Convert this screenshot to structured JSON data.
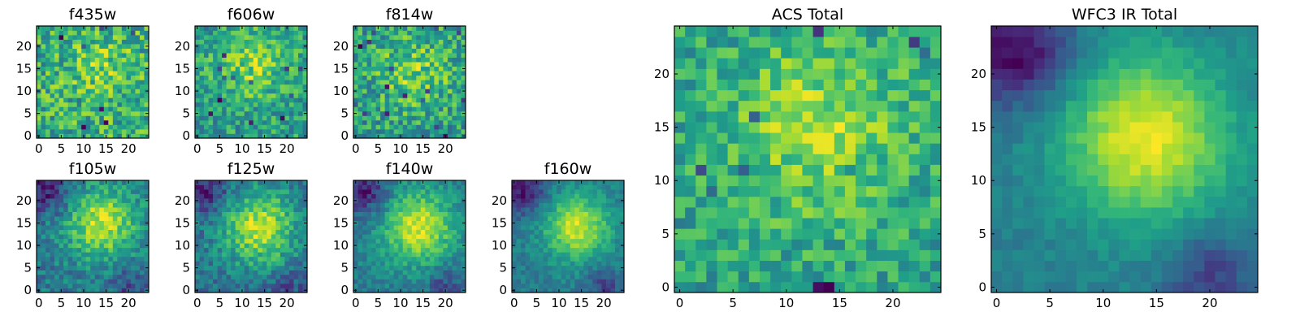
{
  "figure": {
    "description_free": true
  },
  "chart_data": [
    {
      "type": "heatmap",
      "title": "f435w",
      "grid_size": 25,
      "peak": [
        14,
        15
      ],
      "sigma": 5.0,
      "noise": 0.55,
      "signal": 0.35,
      "seed": 11,
      "corner_dark": 0.0,
      "xlim": [
        0,
        24
      ],
      "ylim": [
        0,
        24
      ],
      "xticks": [
        0,
        5,
        10,
        15,
        20
      ],
      "yticks": [
        0,
        5,
        10,
        15,
        20
      ]
    },
    {
      "type": "heatmap",
      "title": "f606w",
      "grid_size": 25,
      "peak": [
        12,
        16
      ],
      "sigma": 5.5,
      "noise": 0.45,
      "signal": 0.6,
      "seed": 23,
      "corner_dark": 0.0,
      "xlim": [
        0,
        24
      ],
      "ylim": [
        0,
        24
      ],
      "xticks": [
        0,
        5,
        10,
        15,
        20
      ],
      "yticks": [
        0,
        5,
        10,
        15,
        20
      ]
    },
    {
      "type": "heatmap",
      "title": "f814w",
      "grid_size": 25,
      "peak": [
        13,
        14
      ],
      "sigma": 6.0,
      "noise": 0.5,
      "signal": 0.5,
      "seed": 37,
      "corner_dark": 0.0,
      "xlim": [
        0,
        24
      ],
      "ylim": [
        0,
        24
      ],
      "xticks": [
        0,
        5,
        10,
        15,
        20
      ],
      "yticks": [
        0,
        5,
        10,
        15,
        20
      ]
    },
    {
      "type": "heatmap",
      "title": "f105w",
      "grid_size": 25,
      "peak": [
        14,
        15
      ],
      "sigma": 5.5,
      "noise": 0.25,
      "signal": 0.85,
      "seed": 41,
      "corner_dark": 0.35,
      "xlim": [
        0,
        24
      ],
      "ylim": [
        0,
        24
      ],
      "xticks": [
        0,
        5,
        10,
        15,
        20
      ],
      "yticks": [
        0,
        5,
        10,
        15,
        20
      ]
    },
    {
      "type": "heatmap",
      "title": "f125w",
      "grid_size": 25,
      "peak": [
        14,
        14
      ],
      "sigma": 6.0,
      "noise": 0.25,
      "signal": 0.85,
      "seed": 53,
      "corner_dark": 0.3,
      "xlim": [
        0,
        24
      ],
      "ylim": [
        0,
        24
      ],
      "xticks": [
        0,
        5,
        10,
        15,
        20
      ],
      "yticks": [
        0,
        5,
        10,
        15,
        20
      ]
    },
    {
      "type": "heatmap",
      "title": "f140w",
      "grid_size": 25,
      "peak": [
        14,
        14
      ],
      "sigma": 5.5,
      "noise": 0.2,
      "signal": 0.9,
      "seed": 67,
      "corner_dark": 0.4,
      "xlim": [
        0,
        24
      ],
      "ylim": [
        0,
        24
      ],
      "xticks": [
        0,
        5,
        10,
        15,
        20
      ],
      "yticks": [
        0,
        5,
        10,
        15,
        20
      ]
    },
    {
      "type": "heatmap",
      "title": "f160w",
      "grid_size": 25,
      "peak": [
        14,
        14
      ],
      "sigma": 5.0,
      "noise": 0.18,
      "signal": 0.95,
      "seed": 79,
      "corner_dark": 0.45,
      "xlim": [
        0,
        24
      ],
      "ylim": [
        0,
        24
      ],
      "xticks": [
        0,
        5,
        10,
        15,
        20
      ],
      "yticks": [
        0,
        5,
        10,
        15,
        20
      ]
    },
    {
      "type": "heatmap",
      "title": "ACS Total",
      "grid_size": 25,
      "peak": [
        13,
        15
      ],
      "sigma": 6.0,
      "noise": 0.38,
      "signal": 0.6,
      "seed": 97,
      "corner_dark": 0.0,
      "xlim": [
        0,
        24
      ],
      "ylim": [
        0,
        24
      ],
      "xticks": [
        0,
        5,
        10,
        15,
        20
      ],
      "yticks": [
        0,
        5,
        10,
        15,
        20
      ]
    },
    {
      "type": "heatmap",
      "title": "WFC3 IR Total",
      "grid_size": 25,
      "peak": [
        14,
        14
      ],
      "sigma": 5.5,
      "noise": 0.1,
      "signal": 1.0,
      "seed": 113,
      "corner_dark": 0.5,
      "xlim": [
        0,
        24
      ],
      "ylim": [
        0,
        24
      ],
      "xticks": [
        0,
        5,
        10,
        15,
        20
      ],
      "yticks": [
        0,
        5,
        10,
        15,
        20
      ]
    }
  ],
  "colormap": [
    "#440154",
    "#482878",
    "#3e4989",
    "#31688e",
    "#26828e",
    "#1f9e89",
    "#35b779",
    "#6ece58",
    "#b5de2b",
    "#fde725"
  ]
}
